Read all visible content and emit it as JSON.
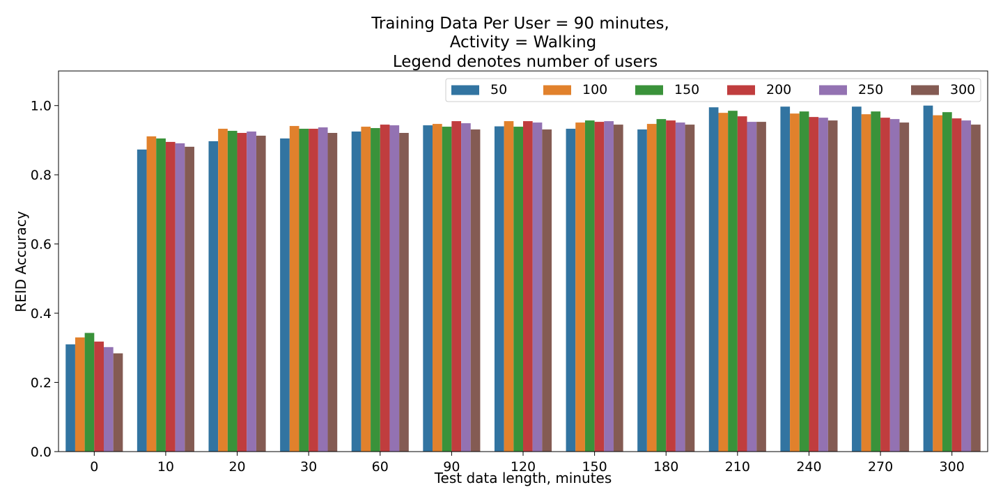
{
  "chart_data": {
    "type": "bar",
    "title_lines": [
      "Training Data Per User = 90 minutes,",
      "Activity = Walking",
      "Legend denotes number of users"
    ],
    "xlabel": "Test data length, minutes",
    "ylabel": "REID Accuracy",
    "ylim": [
      0,
      1.1
    ],
    "yticks": [
      "0.0",
      "0.2",
      "0.4",
      "0.6",
      "0.8",
      "1.0"
    ],
    "legend_position": "top-right",
    "categories": [
      "0",
      "10",
      "20",
      "30",
      "60",
      "90",
      "120",
      "150",
      "180",
      "210",
      "240",
      "270",
      "300"
    ],
    "series": [
      {
        "name": "50",
        "color": "#3274a1",
        "values": [
          0.31,
          0.873,
          0.897,
          0.905,
          0.925,
          0.943,
          0.94,
          0.933,
          0.931,
          0.995,
          0.997,
          0.997,
          1.0
        ]
      },
      {
        "name": "100",
        "color": "#e1812c",
        "values": [
          0.33,
          0.911,
          0.933,
          0.941,
          0.939,
          0.947,
          0.955,
          0.951,
          0.947,
          0.979,
          0.977,
          0.975,
          0.972
        ]
      },
      {
        "name": "150",
        "color": "#3a923a",
        "values": [
          0.343,
          0.905,
          0.927,
          0.933,
          0.935,
          0.939,
          0.939,
          0.957,
          0.961,
          0.985,
          0.983,
          0.983,
          0.981
        ]
      },
      {
        "name": "200",
        "color": "#c03d3e",
        "values": [
          0.318,
          0.895,
          0.921,
          0.933,
          0.945,
          0.955,
          0.955,
          0.953,
          0.957,
          0.969,
          0.967,
          0.965,
          0.963
        ]
      },
      {
        "name": "250",
        "color": "#9372b2",
        "values": [
          0.302,
          0.891,
          0.925,
          0.937,
          0.943,
          0.949,
          0.951,
          0.955,
          0.951,
          0.953,
          0.965,
          0.961,
          0.957
        ]
      },
      {
        "name": "300",
        "color": "#845b53",
        "values": [
          0.284,
          0.881,
          0.913,
          0.921,
          0.921,
          0.931,
          0.931,
          0.945,
          0.945,
          0.953,
          0.957,
          0.951,
          0.945
        ]
      }
    ]
  }
}
